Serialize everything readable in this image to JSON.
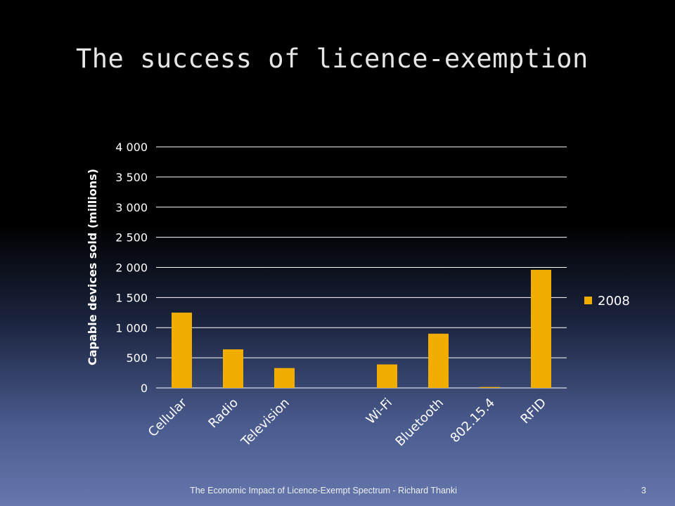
{
  "slide": {
    "title": "The success of licence-exemption",
    "footer": "The Economic Impact of Licence-Exempt Spectrum - Richard Thanki",
    "page_number": "3"
  },
  "chart_data": {
    "type": "bar",
    "categories": [
      "Cellular",
      "Radio",
      "Television",
      "",
      "Wi-Fi",
      "Bluetooth",
      "802.15.4",
      "RFID"
    ],
    "series": [
      {
        "name": "2008",
        "values": [
          1250,
          640,
          330,
          0,
          390,
          900,
          15,
          1960
        ]
      }
    ],
    "ylabel": "Capable devices sold (millions)",
    "xlabel": "",
    "ylim": [
      0,
      4000
    ],
    "yticks": [
      0,
      500,
      1000,
      1500,
      2000,
      2500,
      3000,
      3500,
      4000
    ],
    "ytick_labels": [
      "0",
      "500",
      "1 000",
      "1 500",
      "2 000",
      "2 500",
      "3 000",
      "3 500",
      "4 000"
    ],
    "grid": true,
    "legend_position": "right",
    "bar_color": "#f2ae00",
    "gridline_color": "#ffffff"
  }
}
